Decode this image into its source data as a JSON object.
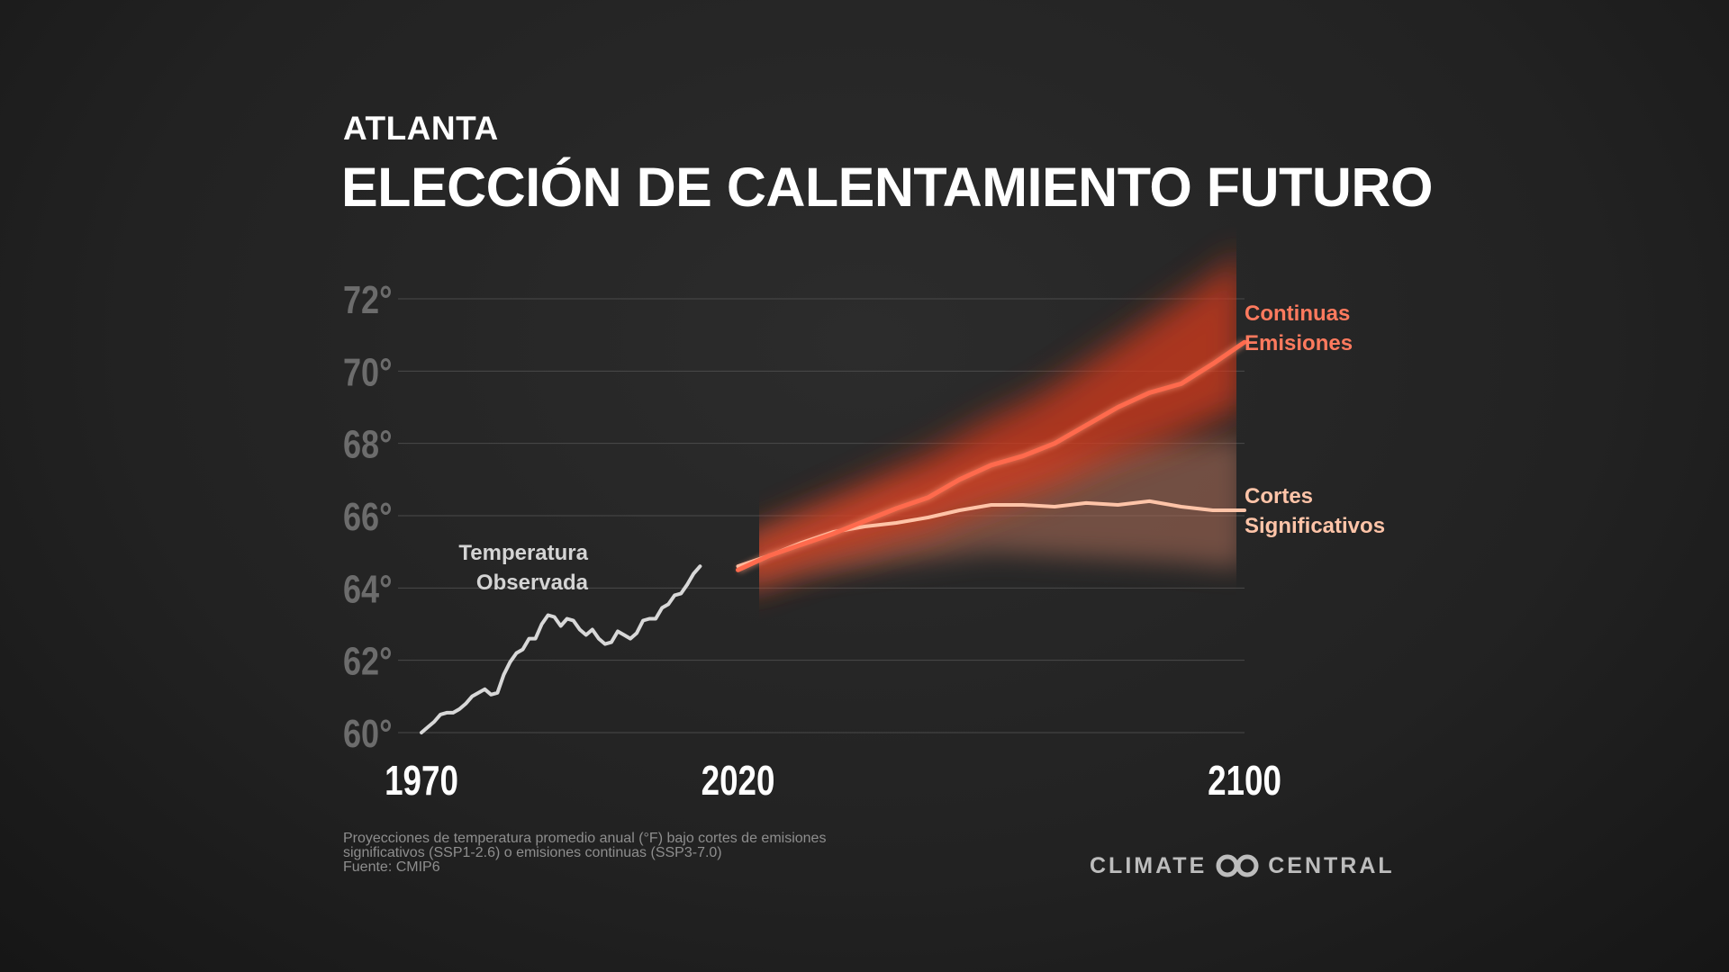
{
  "header": {
    "subtitle": "ATLANTA",
    "title": "ELECCIÓN DE CALENTAMIENTO FUTURO"
  },
  "footer": {
    "lines": [
      "Proyecciones de temperatura promedio anual (°F) bajo cortes de emisiones",
      "significativos (SSP1-2.6) o emisiones continuas (SSP3-7.0)",
      "Fuente: CMIP6"
    ],
    "logo_left": "CLIMATE",
    "logo_right": "CENTRAL"
  },
  "chart_data": {
    "type": "line",
    "title": "ELECCIÓN DE CALENTAMIENTO FUTURO",
    "xlabel": "",
    "ylabel": "",
    "x_ticks": [
      "1970",
      "2020",
      "2100"
    ],
    "y_ticks": [
      "60°",
      "62°",
      "64°",
      "66°",
      "68°",
      "70°",
      "72°"
    ],
    "xlim": [
      1970,
      2100
    ],
    "ylim": [
      60,
      72
    ],
    "grid": true,
    "series": [
      {
        "name": "Temperatura Observada",
        "label_lines": [
          "Temperatura",
          "Observada"
        ],
        "color": "#d8d8d8",
        "x": [
          1970,
          1971,
          1972,
          1973,
          1974,
          1975,
          1976,
          1977,
          1978,
          1979,
          1980,
          1981,
          1982,
          1983,
          1984,
          1985,
          1986,
          1987,
          1988,
          1989,
          1990,
          1991,
          1992,
          1993,
          1994,
          1995,
          1996,
          1997,
          1998,
          1999,
          2000,
          2001,
          2002,
          2003,
          2004,
          2005,
          2006,
          2007,
          2008,
          2009,
          2010,
          2011,
          2012,
          2013,
          2014,
          2015,
          2016,
          2017,
          2018,
          2019,
          2020
        ],
        "y": [
          60.0,
          60.15,
          60.3,
          60.5,
          60.55,
          60.55,
          60.65,
          60.8,
          61.0,
          61.1,
          61.2,
          61.05,
          61.1,
          61.6,
          61.95,
          62.2,
          62.3,
          62.6,
          62.6,
          63.0,
          63.25,
          63.2,
          62.95,
          63.15,
          63.1,
          62.85,
          62.7,
          62.85,
          62.6,
          62.45,
          62.5,
          62.8,
          62.7,
          62.6,
          62.75,
          63.1,
          63.15,
          63.15,
          63.45,
          63.55,
          63.8,
          63.85,
          64.1,
          64.4,
          64.6,
          null,
          null,
          null,
          null,
          null,
          null
        ]
      },
      {
        "name": "Continuas Emisiones",
        "label_lines": [
          "Continuas",
          "Emisiones"
        ],
        "color": "#ff6a4d",
        "x": [
          2020,
          2025,
          2030,
          2035,
          2040,
          2045,
          2050,
          2055,
          2060,
          2065,
          2070,
          2075,
          2080,
          2085,
          2090,
          2095,
          2100
        ],
        "y": [
          64.5,
          64.9,
          65.2,
          65.5,
          65.85,
          66.2,
          66.5,
          67.0,
          67.4,
          67.65,
          68.0,
          68.5,
          69.0,
          69.4,
          69.65,
          70.2,
          70.8
        ],
        "range_low": [
          63.9,
          64.2,
          64.5,
          64.8,
          65.0,
          65.3,
          65.5,
          65.9,
          66.2,
          66.5,
          66.8,
          67.2,
          67.6,
          67.9,
          68.2,
          68.6,
          69.0
        ],
        "range_high": [
          65.3,
          65.7,
          66.1,
          66.5,
          66.9,
          67.3,
          67.7,
          68.2,
          68.7,
          69.1,
          69.6,
          70.2,
          70.8,
          71.4,
          72.0,
          72.6,
          73.3
        ]
      },
      {
        "name": "Cortes Significativos",
        "label_lines": [
          "Cortes",
          "Significativos"
        ],
        "color": "#ffc4a8",
        "x": [
          2020,
          2025,
          2030,
          2035,
          2040,
          2045,
          2050,
          2055,
          2060,
          2065,
          2070,
          2075,
          2080,
          2085,
          2090,
          2095,
          2100
        ],
        "y": [
          64.6,
          64.9,
          65.25,
          65.55,
          65.7,
          65.8,
          65.95,
          66.15,
          66.3,
          66.3,
          66.25,
          66.35,
          66.3,
          66.4,
          66.25,
          66.15,
          66.15
        ],
        "range_low": [
          64.0,
          64.2,
          64.4,
          64.5,
          64.6,
          64.7,
          64.8,
          64.9,
          65.0,
          64.95,
          64.9,
          64.85,
          64.8,
          64.75,
          64.7,
          64.6,
          64.55
        ],
        "range_high": [
          65.2,
          65.6,
          65.9,
          66.2,
          66.5,
          66.8,
          67.0,
          67.3,
          67.6,
          67.7,
          67.8,
          67.9,
          68.0,
          68.1,
          68.1,
          68.1,
          68.2
        ]
      }
    ]
  }
}
